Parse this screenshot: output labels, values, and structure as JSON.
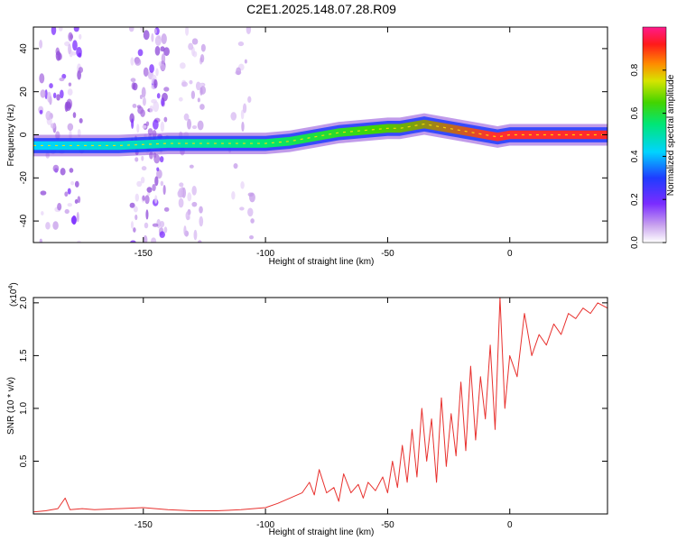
{
  "title": "C2E1.2025.148.07.28.R09",
  "colors": {
    "snr_line": "#e8312e",
    "axis": "#000000",
    "background": "#ffffff"
  },
  "chart_data": [
    {
      "type": "heatmap",
      "title": "C2E1.2025.148.07.28.R09",
      "xlabel": "Height of straight line (km)",
      "ylabel": "Frequency (Hz)",
      "xlim": [
        -195,
        40
      ],
      "ylim": [
        -50,
        50
      ],
      "xticks": [
        -150,
        -100,
        -50,
        0
      ],
      "xtick_labels": [
        "-150",
        "-100",
        "-50",
        "0"
      ],
      "yticks": [
        -40,
        -20,
        0,
        20,
        40
      ],
      "ytick_labels": [
        "-40",
        "-20",
        "0",
        "20",
        "40"
      ],
      "colorbar": {
        "label": "Normalized spectral amplitude",
        "range": [
          0,
          1
        ],
        "ticks": [
          0.0,
          0.2,
          0.4,
          0.6,
          0.8
        ],
        "tick_labels": [
          "0.0",
          "0.2",
          "0.4",
          "0.6",
          "0.8"
        ],
        "colormap": "rainbow (white-violet-blue-cyan-green-yellow-red-magenta)"
      },
      "ridge": {
        "description": "dominant frequency band vs height",
        "x": [
          -195,
          -180,
          -160,
          -140,
          -120,
          -100,
          -90,
          -80,
          -70,
          -60,
          -50,
          -45,
          -40,
          -35,
          -30,
          -25,
          -20,
          -15,
          -10,
          -5,
          0,
          10,
          20,
          30,
          40
        ],
        "freq": [
          -5,
          -5,
          -5,
          -4,
          -4,
          -4,
          -3,
          -1,
          1,
          2,
          3,
          3,
          4,
          5,
          4,
          3,
          2,
          1,
          0,
          -1,
          0,
          0,
          0,
          0,
          0
        ]
      }
    },
    {
      "type": "line",
      "xlabel": "Height of straight line (km)",
      "ylabel": "SNR (10 * v/v)",
      "y_multiplier_label": "(x10",
      "y_multiplier_exp": "4",
      "xlim": [
        -195,
        40
      ],
      "ylim": [
        0,
        2.05
      ],
      "xticks": [
        -150,
        -100,
        -50,
        0
      ],
      "xtick_labels": [
        "-150",
        "-100",
        "-50",
        "0"
      ],
      "yticks": [
        0.5,
        1.0,
        1.5,
        2.0
      ],
      "ytick_labels": [
        "0.5",
        "1.0",
        "1.5",
        "2.0"
      ],
      "series": [
        {
          "color": "#e8312e",
          "x": [
            -195,
            -190,
            -185,
            -182,
            -180,
            -175,
            -170,
            -160,
            -150,
            -140,
            -130,
            -120,
            -110,
            -100,
            -95,
            -90,
            -85,
            -82,
            -80,
            -78,
            -75,
            -72,
            -70,
            -68,
            -65,
            -62,
            -60,
            -58,
            -55,
            -52,
            -50,
            -48,
            -46,
            -44,
            -42,
            -40,
            -38,
            -36,
            -34,
            -32,
            -30,
            -28,
            -26,
            -24,
            -22,
            -20,
            -18,
            -16,
            -14,
            -12,
            -10,
            -8,
            -6,
            -4,
            -2,
            0,
            3,
            6,
            9,
            12,
            15,
            18,
            21,
            24,
            27,
            30,
            33,
            36,
            40
          ],
          "y": [
            0.02,
            0.03,
            0.05,
            0.15,
            0.04,
            0.05,
            0.04,
            0.05,
            0.06,
            0.04,
            0.03,
            0.03,
            0.04,
            0.06,
            0.1,
            0.15,
            0.2,
            0.3,
            0.18,
            0.42,
            0.2,
            0.25,
            0.12,
            0.38,
            0.2,
            0.28,
            0.15,
            0.3,
            0.22,
            0.35,
            0.2,
            0.5,
            0.25,
            0.65,
            0.3,
            0.8,
            0.35,
            1.0,
            0.5,
            0.9,
            0.3,
            1.1,
            0.45,
            0.95,
            0.55,
            1.25,
            0.6,
            1.4,
            0.7,
            1.3,
            0.9,
            1.6,
            0.8,
            2.05,
            1.0,
            1.5,
            1.3,
            1.9,
            1.5,
            1.7,
            1.6,
            1.8,
            1.7,
            1.9,
            1.85,
            1.95,
            1.9,
            2.0,
            1.95
          ]
        }
      ]
    }
  ]
}
